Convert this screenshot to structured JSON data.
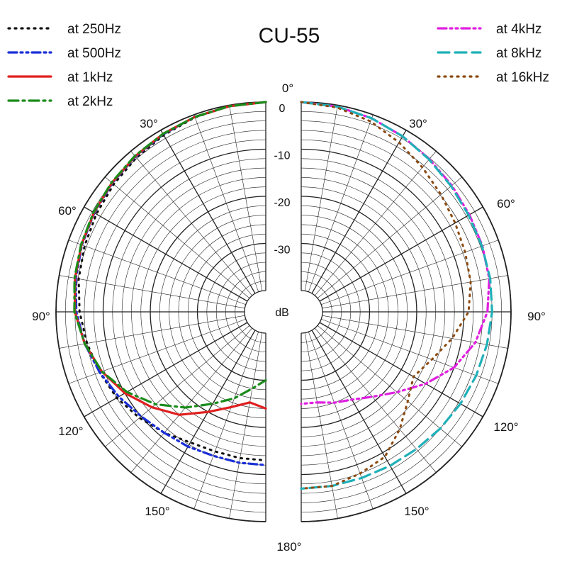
{
  "chart_data": {
    "type": "polar",
    "title": "CU-55",
    "radial_unit": "dB",
    "rlim": [
      -40,
      0
    ],
    "radial_ticks": [
      "0",
      "-10",
      "-20",
      "-30"
    ],
    "angle_labels": [
      "0°",
      "30°",
      "60°",
      "90°",
      "120°",
      "150°",
      "180°",
      "30°",
      "60°",
      "90°",
      "120°",
      "150°"
    ],
    "grid": true,
    "legend_left": "top-left",
    "legend_right": "top-right",
    "series": [
      {
        "name": "at 250Hz",
        "side": "left",
        "color": "#111111",
        "style": "dotted",
        "angles": [
          0,
          10,
          20,
          30,
          40,
          50,
          60,
          70,
          80,
          90,
          100,
          110,
          120,
          130,
          140,
          150,
          160,
          170,
          180
        ],
        "values": [
          0,
          -0.2,
          -0.6,
          -1.2,
          -1.8,
          -2.4,
          -3.0,
          -3.6,
          -4.2,
          -5.0,
          -6.0,
          -7.0,
          -8.0,
          -9.5,
          -11.0,
          -12.5,
          -13.0,
          -13.0,
          -13.0
        ]
      },
      {
        "name": "at 500Hz",
        "side": "left",
        "color": "#1a2fd6",
        "style": "dashdotdot",
        "angles": [
          0,
          10,
          20,
          30,
          40,
          50,
          60,
          70,
          80,
          90,
          100,
          110,
          120,
          130,
          140,
          150,
          160,
          170,
          180
        ],
        "values": [
          0,
          -0.2,
          -0.5,
          -1.0,
          -1.5,
          -2.0,
          -2.5,
          -3.0,
          -3.6,
          -4.3,
          -5.5,
          -7.0,
          -8.5,
          -10.0,
          -11.0,
          -11.5,
          -12.0,
          -12.0,
          -12.0
        ]
      },
      {
        "name": "at 1kHz",
        "side": "left",
        "color": "#e02020",
        "style": "solid",
        "angles": [
          0,
          10,
          20,
          30,
          40,
          50,
          60,
          70,
          80,
          90,
          100,
          110,
          120,
          130,
          140,
          150,
          160,
          170,
          180
        ],
        "values": [
          0,
          -0.2,
          -0.5,
          -0.9,
          -1.4,
          -1.9,
          -2.4,
          -2.9,
          -3.4,
          -4.0,
          -5.5,
          -7.5,
          -10.0,
          -13.0,
          -16.0,
          -20.0,
          -23.0,
          -25.0,
          -24.0
        ]
      },
      {
        "name": "at 2kHz",
        "side": "left",
        "color": "#1a8c1a",
        "style": "dashdot",
        "angles": [
          0,
          10,
          20,
          30,
          40,
          50,
          60,
          70,
          80,
          90,
          100,
          110,
          120,
          130,
          140,
          150,
          160,
          170,
          180
        ],
        "values": [
          0,
          -0.2,
          -0.5,
          -0.9,
          -1.3,
          -1.8,
          -2.3,
          -2.8,
          -3.3,
          -3.9,
          -5.5,
          -7.5,
          -10.5,
          -14.0,
          -18.0,
          -22.0,
          -25.0,
          -28.0,
          -30.0
        ]
      },
      {
        "name": "at 4kHz",
        "side": "right",
        "color": "#e020e0",
        "style": "dashdotdot",
        "angles": [
          0,
          10,
          20,
          30,
          40,
          50,
          60,
          70,
          80,
          90,
          100,
          110,
          120,
          130,
          140,
          150,
          160,
          170,
          180
        ],
        "values": [
          0,
          -0.3,
          -0.8,
          -1.5,
          -2.2,
          -2.8,
          -3.3,
          -3.6,
          -4.0,
          -5.0,
          -7.0,
          -10.0,
          -14.0,
          -18.0,
          -21.0,
          -23.0,
          -24.0,
          -25.0,
          -25.0
        ]
      },
      {
        "name": "at 8kHz",
        "side": "right",
        "color": "#20b0b8",
        "style": "dashed",
        "angles": [
          0,
          10,
          20,
          30,
          40,
          50,
          60,
          70,
          80,
          90,
          100,
          110,
          120,
          130,
          140,
          150,
          160,
          170,
          180
        ],
        "values": [
          0,
          -0.3,
          -0.8,
          -1.5,
          -2.3,
          -3.0,
          -3.5,
          -3.7,
          -3.8,
          -4.0,
          -4.5,
          -5.0,
          -5.5,
          -6.0,
          -6.5,
          -6.8,
          -7.0,
          -7.0,
          -7.0
        ]
      },
      {
        "name": "at 16kHz",
        "side": "right",
        "color": "#8b4a10",
        "style": "dotted",
        "angles": [
          0,
          10,
          20,
          30,
          40,
          50,
          60,
          70,
          80,
          90,
          100,
          110,
          120,
          130,
          140,
          150,
          160,
          170,
          180
        ],
        "values": [
          0,
          -0.5,
          -1.5,
          -3.0,
          -4.5,
          -5.8,
          -6.8,
          -7.5,
          -8.0,
          -9.0,
          -12.0,
          -15.0,
          -17.0,
          -15.0,
          -12.0,
          -9.0,
          -8.0,
          -7.0,
          -7.0
        ]
      }
    ]
  }
}
